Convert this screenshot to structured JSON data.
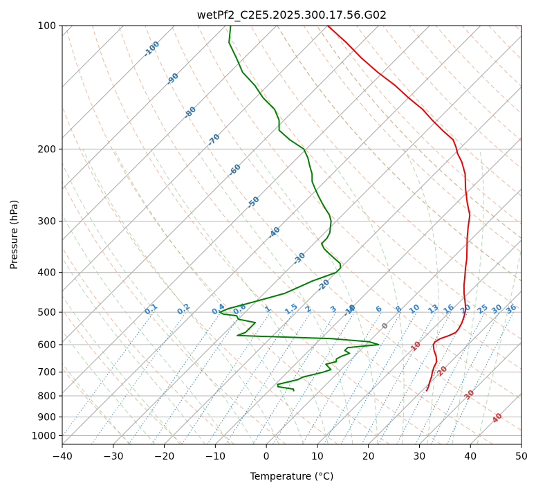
{
  "chart_data": {
    "type": "skew-t",
    "title": "wetPf2_C2E5.2025.300.17.56.G02",
    "xlabel": "Temperature (°C)",
    "ylabel": "Pressure (hPa)",
    "xlim": [
      -40,
      50
    ],
    "ylim_hpa": [
      1050,
      100
    ],
    "x_ticks": [
      -40,
      -30,
      -20,
      -10,
      0,
      10,
      20,
      30,
      40,
      50
    ],
    "x_tick_labels": [
      "−40",
      "−30",
      "−20",
      "−10",
      "0",
      "10",
      "20",
      "30",
      "40",
      "50"
    ],
    "p_ticks": [
      100,
      200,
      300,
      400,
      500,
      600,
      700,
      800,
      900,
      1000
    ],
    "p_tick_labels": [
      "100",
      "200",
      "300",
      "400",
      "500",
      "600",
      "700",
      "800",
      "900",
      "1000"
    ],
    "isotherm_labels": [
      {
        "t": -100,
        "p": 114,
        "text": "-100"
      },
      {
        "t": -90,
        "p": 135,
        "text": "-90"
      },
      {
        "t": -80,
        "p": 163,
        "text": "-80"
      },
      {
        "t": -70,
        "p": 190,
        "text": "-70"
      },
      {
        "t": -60,
        "p": 225,
        "text": "-60"
      },
      {
        "t": -50,
        "p": 270,
        "text": "-50"
      },
      {
        "t": -40,
        "p": 320,
        "text": "-40"
      },
      {
        "t": -30,
        "p": 370,
        "text": "-30"
      },
      {
        "t": -20,
        "p": 430,
        "text": "-20"
      },
      {
        "t": -10,
        "p": 495,
        "text": "-10"
      }
    ],
    "isotherm_hot_labels": [
      {
        "t": 0,
        "p": 540,
        "text": "0"
      },
      {
        "t": 10,
        "p": 605,
        "text": "10"
      },
      {
        "t": 20,
        "p": 695,
        "text": "20"
      },
      {
        "t": 30,
        "p": 795,
        "text": "30"
      },
      {
        "t": 40,
        "p": 905,
        "text": "40"
      }
    ],
    "mixing_ratio_values": [
      0.1,
      0.2,
      0.4,
      0.6,
      1,
      1.5,
      2,
      3,
      4,
      6,
      8,
      10,
      13,
      16,
      20,
      25,
      30,
      36
    ],
    "mixing_ratio_labels": [
      "0.1",
      "0.2",
      "0.4",
      "0.6",
      "1",
      "1.5",
      "2",
      "3",
      "4",
      "6",
      "8",
      "10",
      "13",
      "16",
      "20",
      "25",
      "30",
      "36"
    ],
    "series": [
      {
        "name": "Temperature",
        "color": "#ee0000",
        "p": [
          780,
          760,
          740,
          720,
          700,
          680,
          660,
          640,
          620,
          600,
          590,
          580,
          570,
          560,
          550,
          530,
          510,
          490,
          470,
          450,
          430,
          410,
          390,
          370,
          350,
          330,
          310,
          290,
          270,
          250,
          230,
          215,
          205,
          198,
          190,
          180,
          170,
          160,
          150,
          140,
          130,
          120,
          110,
          100
        ],
        "t": [
          21,
          20.5,
          19.8,
          19.2,
          18.4,
          17.7,
          17.2,
          16,
          14.5,
          13.2,
          13,
          13.4,
          14.5,
          15.2,
          15.1,
          14.5,
          13.6,
          12.5,
          10.9,
          9.2,
          7.6,
          6.1,
          4.5,
          2.9,
          1,
          -1,
          -3,
          -5,
          -8,
          -11,
          -14,
          -17,
          -19.5,
          -21,
          -23,
          -27,
          -31,
          -35,
          -40,
          -45,
          -51,
          -57,
          -63,
          -70
        ]
      },
      {
        "name": "Dewpoint",
        "color": "#008000",
        "p": [
          780,
          770,
          760,
          750,
          740,
          730,
          720,
          710,
          700,
          690,
          680,
          670,
          660,
          650,
          640,
          630,
          620,
          610,
          600,
          590,
          580,
          570,
          560,
          550,
          540,
          530,
          520,
          510,
          505,
          500,
          490,
          480,
          470,
          460,
          450,
          440,
          430,
          420,
          410,
          400,
          390,
          380,
          370,
          360,
          350,
          340,
          330,
          320,
          310,
          300,
          290,
          280,
          270,
          260,
          250,
          240,
          230,
          220,
          210,
          200,
          190,
          180,
          170,
          160,
          150,
          140,
          130,
          120,
          110,
          100
        ],
        "td": [
          -5,
          -5.5,
          -9,
          -9.5,
          -8,
          -6.5,
          -6,
          -4.5,
          -3,
          -2,
          -3,
          -4,
          -2.5,
          -3,
          -2.5,
          -1.5,
          -3,
          -3,
          2.5,
          0,
          -8,
          -27,
          -26,
          -26,
          -26,
          -26,
          -30,
          -31,
          -34,
          -35,
          -34,
          -32,
          -30,
          -28,
          -26,
          -25,
          -24,
          -23,
          -21.5,
          -20,
          -20,
          -21,
          -23,
          -25,
          -27,
          -28.5,
          -28.5,
          -29,
          -30,
          -31,
          -32.5,
          -34.5,
          -36.5,
          -38.5,
          -40.5,
          -42.5,
          -44,
          -46,
          -48,
          -50.5,
          -55,
          -59,
          -61,
          -64,
          -68.5,
          -72.5,
          -77.5,
          -81.5,
          -86,
          -89
        ]
      }
    ],
    "skew_degrees": 45
  }
}
